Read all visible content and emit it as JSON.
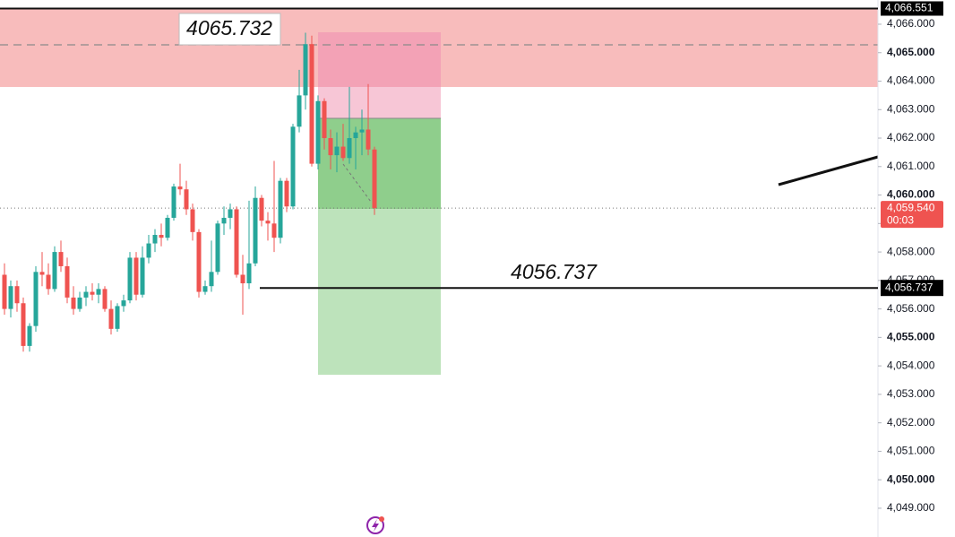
{
  "chart_data": {
    "type": "candlestick",
    "up_color": "#26a69a",
    "down_color": "#ef5350",
    "open": [
      4057.2,
      4056.0,
      4056.8,
      4056.2,
      4054.7,
      4055.4,
      4057.3,
      4057.2,
      4056.7,
      4058.0,
      4057.5,
      4056.4,
      4056.0,
      4056.4,
      4056.6,
      4056.5,
      4056.7,
      4056.0,
      4055.3,
      4056.1,
      4056.3,
      4057.8,
      4056.5,
      4057.8,
      4058.3,
      4058.6,
      4058.5,
      4059.2,
      4060.3,
      4060.2,
      4059.5,
      4058.7,
      4056.6,
      4056.8,
      4057.3,
      4059.0,
      4059.2,
      4059.5,
      4057.2,
      4056.9,
      4057.6,
      4059.9,
      4059.1,
      4059.0,
      4058.5,
      4060.5,
      4059.6,
      4062.4,
      4063.5,
      4065.3,
      4061.1,
      4063.3,
      4062.0,
      4061.4,
      4061.7,
      4061.3,
      4062.0,
      4062.2,
      4062.3,
      4061.6
    ],
    "high": [
      4057.6,
      4057.0,
      4057.0,
      4056.4,
      4055.5,
      4057.5,
      4058.0,
      4057.6,
      4058.2,
      4058.4,
      4057.8,
      4056.8,
      4056.6,
      4056.8,
      4056.9,
      4056.9,
      4056.8,
      4056.3,
      4056.2,
      4056.5,
      4058.0,
      4058.0,
      4058.2,
      4058.6,
      4058.8,
      4059.0,
      4059.3,
      4060.4,
      4061.1,
      4060.5,
      4059.7,
      4058.8,
      4057.0,
      4058.4,
      4059.1,
      4059.6,
      4059.7,
      4059.6,
      4057.9,
      4059.8,
      4060.3,
      4060.0,
      4059.4,
      4061.2,
      4060.6,
      4060.6,
      4062.5,
      4064.4,
      4065.7,
      4065.6,
      4063.5,
      4063.4,
      4062.3,
      4062.2,
      4062.5,
      4063.8,
      4062.4,
      4063.0,
      4063.9,
      4061.7
    ],
    "low": [
      4055.8,
      4055.7,
      4055.9,
      4054.5,
      4054.5,
      4055.2,
      4056.8,
      4056.5,
      4056.6,
      4057.3,
      4056.2,
      4055.8,
      4055.9,
      4056.1,
      4056.3,
      4056.2,
      4055.9,
      4055.1,
      4055.2,
      4055.9,
      4056.2,
      4056.3,
      4056.4,
      4057.6,
      4058.0,
      4058.2,
      4058.4,
      4059.1,
      4060.0,
      4059.3,
      4058.4,
      4056.4,
      4056.5,
      4056.6,
      4057.2,
      4058.6,
      4058.8,
      4057.1,
      4055.8,
      4056.7,
      4057.5,
      4058.9,
      4058.4,
      4058.0,
      4058.3,
      4059.4,
      4059.5,
      4062.2,
      4063.0,
      4061.0,
      4060.9,
      4061.6,
      4060.9,
      4060.8,
      4061.2,
      4061.1,
      4060.9,
      4061.4,
      4061.4,
      4059.3
    ],
    "close": [
      4056.0,
      4056.8,
      4056.2,
      4054.7,
      4055.4,
      4057.3,
      4057.2,
      4056.7,
      4058.0,
      4057.5,
      4056.4,
      4056.0,
      4056.4,
      4056.6,
      4056.5,
      4056.7,
      4056.0,
      4055.3,
      4056.1,
      4056.3,
      4057.8,
      4056.5,
      4057.8,
      4058.3,
      4058.6,
      4058.5,
      4059.2,
      4060.3,
      4060.2,
      4059.5,
      4058.7,
      4056.6,
      4056.8,
      4057.3,
      4059.0,
      4059.2,
      4059.5,
      4057.2,
      4056.9,
      4057.6,
      4059.9,
      4059.1,
      4059.0,
      4058.5,
      4060.5,
      4059.6,
      4062.4,
      4063.5,
      4065.3,
      4061.1,
      4063.3,
      4062.0,
      4061.4,
      4061.7,
      4061.3,
      4062.0,
      4062.2,
      4062.3,
      4061.6,
      4059.54
    ],
    "ylim": [
      4047.99,
      4066.85
    ],
    "yticks": [
      {
        "value": 4066,
        "label": "4,066.000"
      },
      {
        "value": 4065,
        "label": "4,065.000"
      },
      {
        "value": 4064,
        "label": "4,064.000"
      },
      {
        "value": 4063,
        "label": "4,063.000"
      },
      {
        "value": 4062,
        "label": "4,062.000"
      },
      {
        "value": 4061,
        "label": "4,061.000"
      },
      {
        "value": 4060,
        "label": "4,060.000"
      },
      {
        "value": 4059,
        "label": "4,059.000"
      },
      {
        "value": 4058,
        "label": "4,058.000"
      },
      {
        "value": 4057,
        "label": "4,057.000"
      },
      {
        "value": 4056,
        "label": "4,056.000"
      },
      {
        "value": 4055,
        "label": "4,055.000"
      },
      {
        "value": 4054,
        "label": "4,054.000"
      },
      {
        "value": 4053,
        "label": "4,053.000"
      },
      {
        "value": 4052,
        "label": "4,052.000"
      },
      {
        "value": 4051,
        "label": "4,051.000"
      },
      {
        "value": 4050,
        "label": "4,050.000"
      },
      {
        "value": 4049,
        "label": "4,049.000"
      }
    ],
    "bold_ticks": [
      4065,
      4060,
      4055,
      4050
    ],
    "top_level": {
      "value": 4066.551,
      "label": "4,066.551"
    },
    "current_price": {
      "value": 4059.54,
      "label": "4,059.540",
      "countdown": "00:03"
    },
    "price_line": {
      "value": 4056.737,
      "label": "4,056.737"
    },
    "annotations": [
      "4065.732",
      "4056.737"
    ]
  }
}
